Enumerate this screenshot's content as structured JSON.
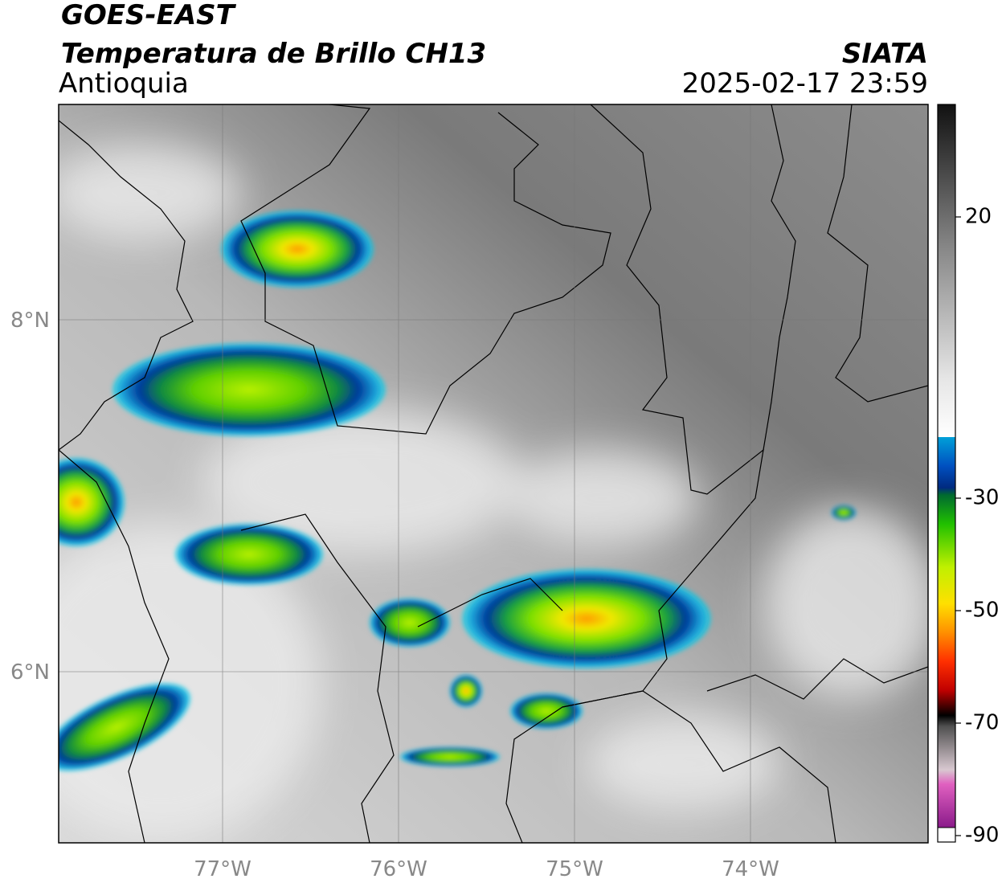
{
  "header": {
    "satellite": "GOES-EAST",
    "product": "Temperatura de Brillo CH13",
    "region": "Antioquia",
    "agency": "SIATA",
    "datetime": "2025-02-17 23:59"
  },
  "map": {
    "lat_labels": [
      "8°N",
      "6°N"
    ],
    "lon_labels": [
      "77°W",
      "76°W",
      "75°W",
      "74°W"
    ]
  },
  "colorbar": {
    "lim": [
      -90,
      40
    ],
    "ticks": [
      20,
      -30,
      -50,
      -70,
      -90
    ]
  }
}
